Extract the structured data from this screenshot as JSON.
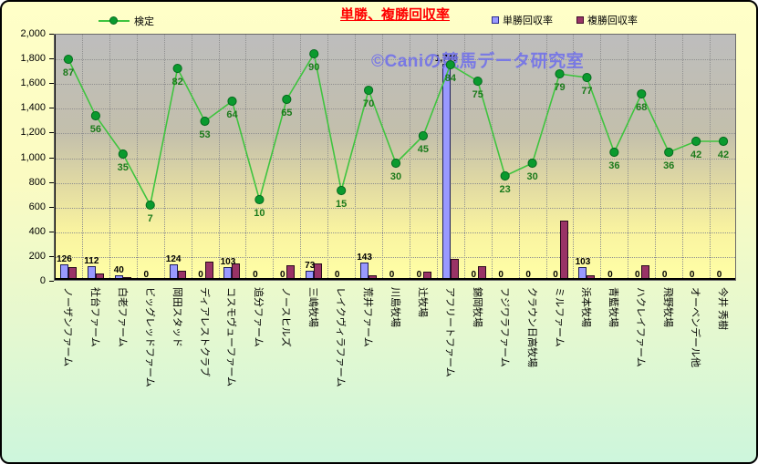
{
  "title": "単勝、複勝回収率",
  "watermark": "©Caniの競馬データ研究室",
  "legend": {
    "line_label": "検定",
    "bar1_label": "単勝回収率",
    "bar2_label": "複勝回収率"
  },
  "colors": {
    "title": "#FF0000",
    "tansho_bar": "#9999FF",
    "fukusho_bar": "#993366",
    "kentei_line": "#3FC43F",
    "kentei_marker": "#0A9A2E",
    "kentei_label": "#1B7A1B",
    "watermark": "#7474E8"
  },
  "chart_data": {
    "type": "bar",
    "subtype": "bar+line combo",
    "title": "単勝、複勝回収率",
    "categories": [
      "ノーザンファーム",
      "社台ファーム",
      "白老ファーム",
      "ビッグレッドファーム",
      "岡田スタッド",
      "ディアレストクラブ",
      "コスモヴューファーム",
      "追分ファーム",
      "ノースヒルズ",
      "三嶋牧場",
      "レイクヴィラファーム",
      "荒井ファーム",
      "川島牧場",
      "辻牧場",
      "アフリートファーム",
      "錦岡牧場",
      "フジワラファーム",
      "クラウン日高牧場",
      "ミルファーム",
      "浜本牧場",
      "青藍牧場",
      "ハクレイファーム",
      "飛野牧場",
      "オーベンデール他",
      "今井 秀樹"
    ],
    "series": [
      {
        "name": "単勝回収率",
        "type": "bar",
        "color": "#9999FF",
        "values": [
          126,
          112,
          40,
          0,
          124,
          0,
          103,
          0,
          0,
          73,
          0,
          143,
          0,
          0,
          1746,
          0,
          0,
          0,
          0,
          103,
          0,
          0,
          0,
          0,
          0
        ],
        "labels": [
          "126",
          "112",
          "40",
          "0",
          "124",
          "0",
          "103",
          "0",
          "0",
          "73",
          "0",
          "143",
          "0",
          "0",
          "1,746",
          "0",
          "0",
          "0",
          "0",
          "103",
          "0",
          "0",
          "0",
          "0",
          "0"
        ]
      },
      {
        "name": "複勝回収率",
        "type": "bar",
        "color": "#993366",
        "values": [
          105,
          55,
          20,
          10,
          75,
          145,
          135,
          0,
          115,
          135,
          0,
          40,
          0,
          65,
          170,
          110,
          0,
          0,
          480,
          35,
          0,
          120,
          0,
          0,
          0
        ],
        "note": "values estimated from bar heights; no data labels shown"
      },
      {
        "name": "検定",
        "type": "line",
        "color": "#3FC43F",
        "values": [
          87,
          56,
          35,
          7,
          82,
          53,
          64,
          10,
          65,
          90,
          15,
          70,
          30,
          45,
          84,
          75,
          23,
          30,
          79,
          77,
          36,
          68,
          36,
          42,
          42
        ],
        "labels": [
          "87",
          "56",
          "35",
          "7",
          "82",
          "53",
          "64",
          "10",
          "65",
          "90",
          "15",
          "70",
          "30",
          "45",
          "84",
          "75",
          "23",
          "30",
          "79",
          "77",
          "36",
          "68",
          "36",
          "42",
          "42"
        ]
      }
    ],
    "xlabel": "",
    "ylabel": "",
    "ylim": [
      0,
      2000
    ],
    "y_ticks": [
      0,
      200,
      400,
      600,
      800,
      1000,
      1200,
      1400,
      1600,
      1800,
      2000
    ],
    "y_tick_labels": [
      "0",
      "200",
      "400",
      "600",
      "800",
      "1,000",
      "1,200",
      "1,400",
      "1,600",
      "1,800",
      "2,000"
    ],
    "grid": "dotted horizontal major gridlines + vertical category gridlines",
    "legend_position": "top",
    "line_secondary_axis_map": {
      "offset": 517,
      "scale": 14.75,
      "note": "検定 line plotted on hidden axis: primary_value = offset + scale * v"
    }
  }
}
